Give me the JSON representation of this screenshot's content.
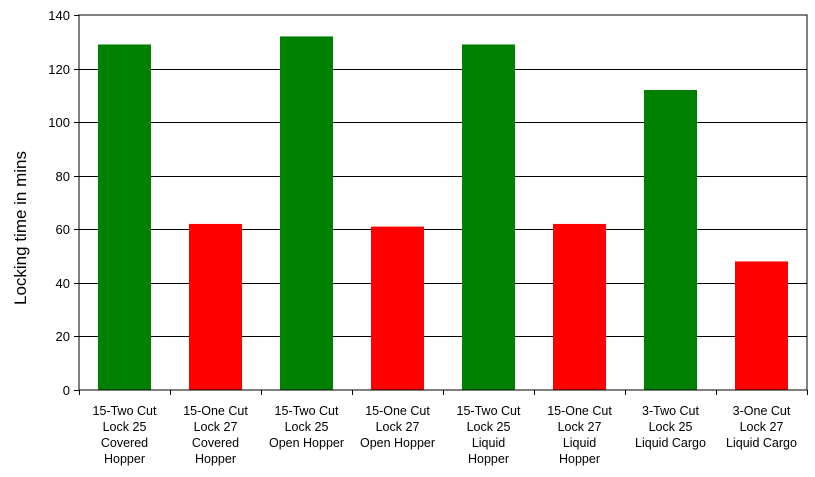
{
  "chart_data": {
    "type": "bar",
    "title": "",
    "xlabel": "",
    "ylabel": "Locking time in mins",
    "ylim": [
      0,
      140
    ],
    "yticks": [
      0,
      20,
      40,
      60,
      80,
      100,
      120,
      140
    ],
    "grid": true,
    "legend": "none",
    "categories": [
      [
        "15-Two Cut",
        "Lock 25",
        "Covered",
        "Hopper"
      ],
      [
        "15-One Cut",
        "Lock 27",
        "Covered",
        "Hopper"
      ],
      [
        "15-Two Cut",
        "Lock 25",
        "Open Hopper"
      ],
      [
        "15-One Cut",
        "Lock 27",
        "Open Hopper"
      ],
      [
        "15-Two Cut",
        "Lock 25",
        "Liquid",
        "Hopper"
      ],
      [
        "15-One Cut",
        "Lock 27",
        "Liquid",
        "Hopper"
      ],
      [
        "3-Two Cut",
        "Lock 25",
        "Liquid Cargo"
      ],
      [
        "3-One Cut",
        "Lock 27",
        "Liquid Cargo"
      ]
    ],
    "values": [
      129,
      62,
      132,
      61,
      129,
      62,
      112,
      48
    ],
    "colors": [
      "#008000",
      "#ff0000",
      "#008000",
      "#ff0000",
      "#008000",
      "#ff0000",
      "#008000",
      "#ff0000"
    ]
  }
}
